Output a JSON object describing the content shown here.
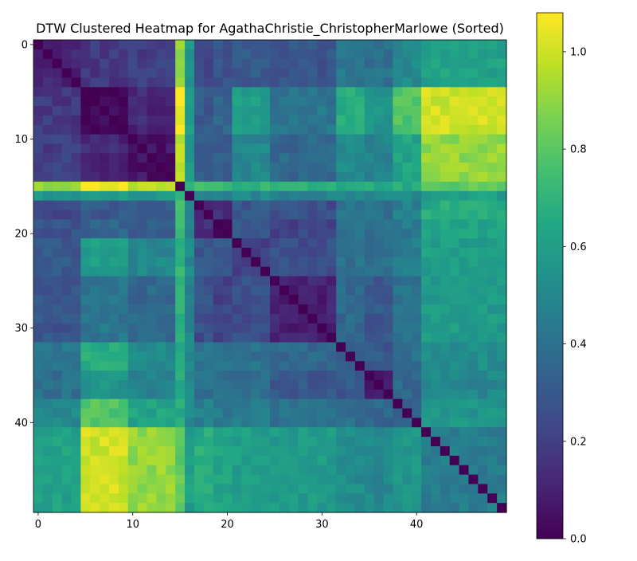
{
  "chart_data": {
    "type": "heatmap",
    "title": "DTW Clustered Heatmap for AgathaChristie_ChristopherMarlowe (Sorted)",
    "xlabel": "",
    "ylabel": "",
    "size": 50,
    "x_ticks": [
      0,
      10,
      20,
      30,
      40
    ],
    "y_ticks": [
      0,
      10,
      20,
      30,
      40
    ],
    "colormap": "viridis",
    "colorbar": {
      "range": [
        0.0,
        1.08
      ],
      "ticks": [
        0.0,
        0.2,
        0.4,
        0.6,
        0.8,
        1.0
      ],
      "tick_labels": [
        "0.0",
        "0.2",
        "0.4",
        "0.6",
        "0.8",
        "1.0"
      ]
    },
    "clusters": [
      {
        "start": 0,
        "end": 4,
        "intra": 0.12
      },
      {
        "start": 5,
        "end": 9,
        "intra": 0.02
      },
      {
        "start": 10,
        "end": 14,
        "intra": 0.06
      },
      {
        "start": 15,
        "end": 15,
        "intra": 0.0
      },
      {
        "start": 16,
        "end": 16,
        "intra": 0.0
      },
      {
        "start": 17,
        "end": 18,
        "intra": 0.12
      },
      {
        "start": 19,
        "end": 20,
        "intra": 0.05
      },
      {
        "start": 21,
        "end": 24,
        "intra": 0.2
      },
      {
        "start": 25,
        "end": 31,
        "intra": 0.1
      },
      {
        "start": 32,
        "end": 34,
        "intra": 0.28
      },
      {
        "start": 35,
        "end": 37,
        "intra": 0.08
      },
      {
        "start": 38,
        "end": 40,
        "intra": 0.3
      },
      {
        "start": 41,
        "end": 49,
        "intra": 0.45
      }
    ],
    "block_levels": {
      "rows": [
        [
          0.12,
          0.18,
          0.2,
          0.92,
          0.55,
          0.22,
          0.28,
          0.3,
          0.28,
          0.42,
          0.4,
          0.5,
          0.62
        ],
        [
          0.18,
          0.02,
          0.12,
          1.08,
          0.58,
          0.3,
          0.35,
          0.6,
          0.42,
          0.66,
          0.55,
          0.78,
          1.0
        ],
        [
          0.2,
          0.12,
          0.06,
          0.98,
          0.56,
          0.3,
          0.32,
          0.5,
          0.36,
          0.52,
          0.48,
          0.62,
          0.9
        ],
        [
          0.92,
          1.08,
          0.98,
          0.0,
          0.72,
          0.72,
          0.7,
          0.7,
          0.7,
          0.66,
          0.66,
          0.66,
          0.8
        ],
        [
          0.55,
          0.58,
          0.56,
          0.72,
          0.0,
          0.5,
          0.48,
          0.5,
          0.48,
          0.5,
          0.5,
          0.52,
          0.6
        ],
        [
          0.22,
          0.3,
          0.3,
          0.72,
          0.5,
          0.12,
          0.15,
          0.3,
          0.26,
          0.42,
          0.4,
          0.46,
          0.66
        ],
        [
          0.28,
          0.35,
          0.32,
          0.7,
          0.48,
          0.15,
          0.05,
          0.3,
          0.22,
          0.4,
          0.38,
          0.44,
          0.62
        ],
        [
          0.3,
          0.6,
          0.5,
          0.7,
          0.5,
          0.3,
          0.3,
          0.2,
          0.26,
          0.4,
          0.38,
          0.46,
          0.6
        ],
        [
          0.28,
          0.42,
          0.36,
          0.7,
          0.48,
          0.26,
          0.22,
          0.26,
          0.1,
          0.36,
          0.3,
          0.4,
          0.58
        ],
        [
          0.42,
          0.66,
          0.52,
          0.66,
          0.5,
          0.42,
          0.4,
          0.4,
          0.36,
          0.28,
          0.3,
          0.4,
          0.52
        ],
        [
          0.4,
          0.55,
          0.48,
          0.66,
          0.5,
          0.4,
          0.38,
          0.38,
          0.3,
          0.3,
          0.08,
          0.36,
          0.5
        ],
        [
          0.5,
          0.78,
          0.62,
          0.66,
          0.52,
          0.46,
          0.44,
          0.46,
          0.4,
          0.4,
          0.36,
          0.3,
          0.56
        ],
        [
          0.62,
          1.0,
          0.9,
          0.8,
          0.6,
          0.66,
          0.62,
          0.6,
          0.58,
          0.52,
          0.5,
          0.56,
          0.45
        ]
      ]
    }
  }
}
